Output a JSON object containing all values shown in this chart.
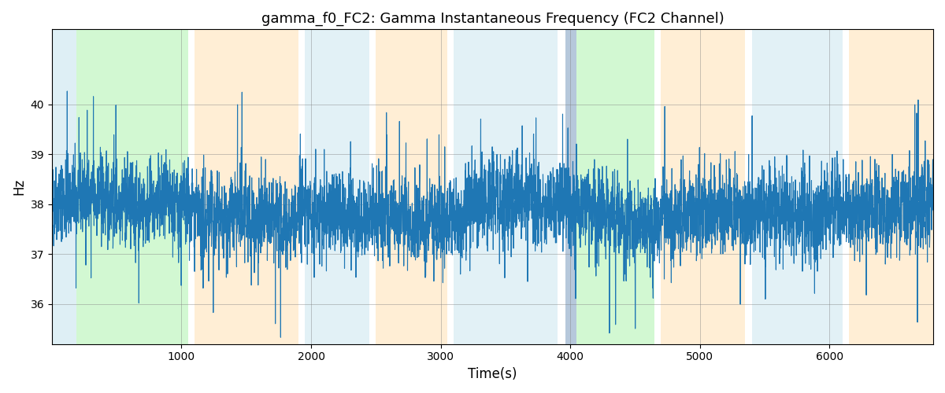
{
  "title": "gamma_f0_FC2: Gamma Instantaneous Frequency (FC2 Channel)",
  "xlabel": "Time(s)",
  "ylabel": "Hz",
  "line_color": "#1f77b4",
  "line_width": 0.8,
  "xlim": [
    0,
    6800
  ],
  "ylim": [
    35.2,
    41.5
  ],
  "yticks": [
    36,
    37,
    38,
    39,
    40
  ],
  "xticks": [
    1000,
    2000,
    3000,
    4000,
    5000,
    6000
  ],
  "seed": 42,
  "n_points": 6800,
  "mean_freq": 37.9,
  "bg_regions": [
    {
      "xmin": 0,
      "xmax": 190,
      "color": "#add8e6",
      "alpha": 0.4
    },
    {
      "xmin": 190,
      "xmax": 1050,
      "color": "#90ee90",
      "alpha": 0.4
    },
    {
      "xmin": 1100,
      "xmax": 1900,
      "color": "#ffdead",
      "alpha": 0.5
    },
    {
      "xmin": 1950,
      "xmax": 2450,
      "color": "#add8e6",
      "alpha": 0.35
    },
    {
      "xmin": 2500,
      "xmax": 3050,
      "color": "#ffdead",
      "alpha": 0.5
    },
    {
      "xmin": 3100,
      "xmax": 3900,
      "color": "#add8e6",
      "alpha": 0.35
    },
    {
      "xmin": 3960,
      "xmax": 4050,
      "color": "#7a9cbf",
      "alpha": 0.55
    },
    {
      "xmin": 4050,
      "xmax": 4650,
      "color": "#90ee90",
      "alpha": 0.4
    },
    {
      "xmin": 4700,
      "xmax": 5350,
      "color": "#ffdead",
      "alpha": 0.5
    },
    {
      "xmin": 5400,
      "xmax": 6100,
      "color": "#add8e6",
      "alpha": 0.35
    },
    {
      "xmin": 6150,
      "xmax": 6800,
      "color": "#ffdead",
      "alpha": 0.5
    }
  ]
}
